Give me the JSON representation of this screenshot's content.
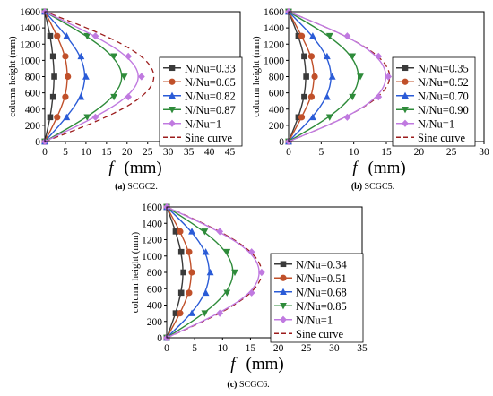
{
  "colors": {
    "s1": "#3a3a3a",
    "s2": "#c0502a",
    "s3": "#2a5bd7",
    "s4": "#2e8b3a",
    "s5": "#c07ae0",
    "sine": "#9c1c1c"
  },
  "chart_data": [
    {
      "type": "line",
      "caption_tag": "(a)",
      "caption_text": "SCGC2.",
      "xlabel_sym": "f",
      "xlabel_unit": "(mm)",
      "ylabel": "column height (mm)",
      "xlim": [
        0,
        47.5
      ],
      "ylim": [
        0,
        1600
      ],
      "xticks": [
        0,
        5,
        10,
        15,
        20,
        25,
        30,
        35,
        40,
        45
      ],
      "yticks": [
        0,
        200,
        400,
        600,
        800,
        1000,
        1200,
        1400,
        1600
      ],
      "heights": [
        0,
        300,
        550,
        800,
        1050,
        1300,
        1600
      ],
      "series": [
        {
          "name": "N/Nu=0.33",
          "marker": "square",
          "x": [
            0,
            1.3,
            2.0,
            2.3,
            2.0,
            1.3,
            0
          ]
        },
        {
          "name": "N/Nu=0.65",
          "marker": "circle",
          "x": [
            0,
            3.0,
            5.0,
            5.6,
            5.0,
            3.0,
            0
          ]
        },
        {
          "name": "N/Nu=0.82",
          "marker": "triangle-up",
          "x": [
            0,
            5.3,
            8.8,
            10.0,
            8.8,
            5.3,
            0
          ]
        },
        {
          "name": "N/Nu=0.87",
          "marker": "triangle-down",
          "x": [
            0,
            10.3,
            16.8,
            19.3,
            16.8,
            10.3,
            0
          ]
        },
        {
          "name": "N/Nu=1",
          "marker": "diamond",
          "x": [
            0,
            12.3,
            20.3,
            23.5,
            20.3,
            12.3,
            0
          ]
        }
      ],
      "sine_amplitude": 26.5,
      "sine_name": "Sine curve"
    },
    {
      "type": "line",
      "caption_tag": "(b)",
      "caption_text": "SCGC5.",
      "xlabel_sym": "f",
      "xlabel_unit": "(mm)",
      "ylabel": "column height (mm)",
      "xlim": [
        0,
        30
      ],
      "ylim": [
        0,
        1600
      ],
      "xticks": [
        0,
        5,
        10,
        15,
        20,
        25,
        30
      ],
      "yticks": [
        0,
        200,
        400,
        600,
        800,
        1000,
        1200,
        1400,
        1600
      ],
      "heights": [
        0,
        300,
        550,
        800,
        1050,
        1300,
        1600
      ],
      "series": [
        {
          "name": "N/Nu=0.35",
          "marker": "square",
          "x": [
            0,
            1.5,
            2.4,
            2.7,
            2.4,
            1.5,
            0
          ]
        },
        {
          "name": "N/Nu=0.52",
          "marker": "circle",
          "x": [
            0,
            2.0,
            3.5,
            4.0,
            3.5,
            2.0,
            0
          ]
        },
        {
          "name": "N/Nu=0.70",
          "marker": "triangle-up",
          "x": [
            0,
            3.7,
            5.9,
            6.7,
            5.9,
            3.7,
            0
          ]
        },
        {
          "name": "N/Nu=0.90",
          "marker": "triangle-down",
          "x": [
            0,
            6.3,
            9.8,
            11.0,
            9.8,
            6.3,
            0
          ]
        },
        {
          "name": "N/Nu=1",
          "marker": "diamond",
          "x": [
            0,
            9.0,
            13.8,
            15.3,
            13.8,
            9.0,
            0
          ]
        }
      ],
      "sine_amplitude": 15.5,
      "sine_name": "Sine curve"
    },
    {
      "type": "line",
      "caption_tag": "(c)",
      "caption_text": "SCGC6.",
      "xlabel_sym": "f",
      "xlabel_unit": "(mm)",
      "ylabel": "column height (mm)",
      "xlim": [
        0,
        35
      ],
      "ylim": [
        0,
        1600
      ],
      "xticks": [
        0,
        5,
        10,
        15,
        20,
        25,
        30,
        35
      ],
      "yticks": [
        0,
        200,
        400,
        600,
        800,
        1000,
        1200,
        1400,
        1600
      ],
      "heights": [
        0,
        300,
        550,
        800,
        1050,
        1300,
        1600
      ],
      "series": [
        {
          "name": "N/Nu=0.34",
          "marker": "square",
          "x": [
            0,
            1.6,
            2.6,
            3.0,
            2.6,
            1.6,
            0
          ]
        },
        {
          "name": "N/Nu=0.51",
          "marker": "circle",
          "x": [
            0,
            2.4,
            4.0,
            4.5,
            4.0,
            2.4,
            0
          ]
        },
        {
          "name": "N/Nu=0.68",
          "marker": "triangle-up",
          "x": [
            0,
            4.5,
            7.0,
            7.8,
            7.0,
            4.5,
            0
          ]
        },
        {
          "name": "N/Nu=0.85",
          "marker": "triangle-down",
          "x": [
            0,
            6.8,
            10.8,
            12.2,
            10.8,
            6.8,
            0
          ]
        },
        {
          "name": "N/Nu=1",
          "marker": "diamond",
          "x": [
            0,
            9.5,
            15.2,
            17.0,
            15.2,
            9.5,
            0
          ]
        }
      ],
      "sine_amplitude": 17.0,
      "sine_name": "Sine curve"
    }
  ]
}
